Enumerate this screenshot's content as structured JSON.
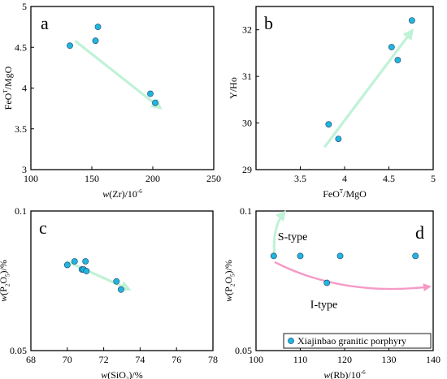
{
  "chart_data": [
    {
      "panel_label": "a",
      "type": "scatter",
      "xlabel_parts": {
        "italic": "w",
        "plain": "(Zr)/10",
        "sup": "-6"
      },
      "ylabel_parts": {
        "base": "FeO",
        "sup": "T",
        "rest": "/MgO"
      },
      "xlim": [
        100,
        250
      ],
      "ylim": [
        3,
        5
      ],
      "log_y": false,
      "xticks": [
        100,
        150,
        200,
        250
      ],
      "yticks": [
        3,
        3.5,
        4,
        4.5,
        5
      ],
      "xtick_labels": [
        "100",
        "150",
        "200",
        "250"
      ],
      "ytick_labels": [
        "3",
        "3.5",
        "4",
        "4.5",
        "5"
      ],
      "points": [
        {
          "x": 132,
          "y": 4.52
        },
        {
          "x": 153,
          "y": 4.58
        },
        {
          "x": 155,
          "y": 4.75
        },
        {
          "x": 198,
          "y": 3.93
        },
        {
          "x": 202,
          "y": 3.82
        }
      ],
      "arrows": [
        {
          "color": "#bff2d6",
          "from": [
            137,
            4.57
          ],
          "to": [
            205,
            3.77
          ]
        }
      ]
    },
    {
      "panel_label": "b",
      "type": "scatter",
      "xlabel_parts": {
        "base": "FeO",
        "sup": "T",
        "rest": "/MgO"
      },
      "ylabel_parts": {
        "plain": "Y/Ho"
      },
      "xlim": [
        3,
        5
      ],
      "ylim": [
        29,
        32.5
      ],
      "log_y": false,
      "xticks": [
        3.5,
        4,
        4.5,
        5
      ],
      "yticks": [
        29,
        30,
        31,
        32
      ],
      "xtick_labels": [
        "3.5",
        "4",
        "4.5",
        "5"
      ],
      "ytick_labels": [
        "29",
        "30",
        "31",
        "32"
      ],
      "points": [
        {
          "x": 3.82,
          "y": 29.97
        },
        {
          "x": 3.93,
          "y": 29.66
        },
        {
          "x": 4.53,
          "y": 31.63
        },
        {
          "x": 4.6,
          "y": 31.35
        },
        {
          "x": 4.76,
          "y": 32.2
        }
      ],
      "arrows": [
        {
          "color": "#bff2d6",
          "from": [
            3.78,
            29.5
          ],
          "to": [
            4.75,
            31.95
          ]
        }
      ]
    },
    {
      "panel_label": "c",
      "type": "scatter",
      "xlabel_parts": {
        "italic": "w",
        "plain": "(SiO",
        "sub": "2",
        "rest": ")/%"
      },
      "ylabel_parts": {
        "italic": "w",
        "plain": "(P",
        "sub": "2",
        "mid": "O",
        "sub2": "5",
        "rest": ")/%"
      },
      "xlim": [
        68,
        78
      ],
      "ylim": [
        0.05,
        0.1
      ],
      "log_y": true,
      "xticks": [
        68,
        70,
        72,
        74,
        76,
        78
      ],
      "yticks": [
        0.05,
        0.1
      ],
      "xtick_labels": [
        "68",
        "70",
        "72",
        "74",
        "76",
        "78"
      ],
      "ytick_labels": [
        "0.05",
        "0.1"
      ],
      "points": [
        {
          "x": 70.0,
          "y": 0.0765
        },
        {
          "x": 70.4,
          "y": 0.0779
        },
        {
          "x": 70.8,
          "y": 0.0748
        },
        {
          "x": 70.9,
          "y": 0.0748
        },
        {
          "x": 71.0,
          "y": 0.0779
        },
        {
          "x": 71.05,
          "y": 0.0742
        },
        {
          "x": 72.7,
          "y": 0.0705
        },
        {
          "x": 72.95,
          "y": 0.0677
        }
      ],
      "arrows": [
        {
          "color": "#bff2d6",
          "from": [
            70.0,
            0.0778
          ],
          "to": [
            73.3,
            0.068
          ]
        }
      ]
    },
    {
      "panel_label": "d",
      "type": "scatter",
      "xlabel_parts": {
        "italic": "w",
        "plain": "(Rb)/10",
        "sup": "-6"
      },
      "ylabel_parts": {
        "italic": "w",
        "plain": "(P",
        "sub": "2",
        "mid": "O",
        "sub2": "5",
        "rest": ")/%"
      },
      "xlim": [
        100,
        140
      ],
      "ylim": [
        0.05,
        0.1
      ],
      "log_y": true,
      "xticks": [
        100,
        110,
        120,
        130,
        140
      ],
      "yticks": [
        0.05,
        0.1
      ],
      "xtick_labels": [
        "100",
        "110",
        "120",
        "130",
        "140"
      ],
      "ytick_labels": [
        "0.05",
        "0.1"
      ],
      "points": [
        {
          "x": 104,
          "y": 0.08
        },
        {
          "x": 110,
          "y": 0.08
        },
        {
          "x": 119,
          "y": 0.08
        },
        {
          "x": 136,
          "y": 0.08
        },
        {
          "x": 116,
          "y": 0.07
        }
      ],
      "arrows": [
        {
          "color": "#bff2d6",
          "label": "S-type"
        },
        {
          "color": "#f59ac6",
          "label": "I-type"
        }
      ],
      "legend": {
        "entries": [
          "Xiajinbao granitic porphyry"
        ],
        "position": "bottom-right"
      }
    }
  ],
  "styles": {
    "point_fill": "#21b7dc",
    "point_stroke": "#1a3a6a"
  }
}
